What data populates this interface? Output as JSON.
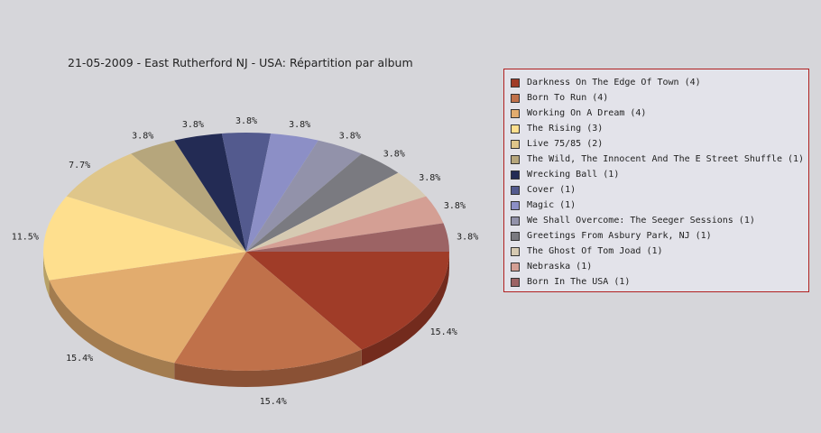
{
  "chart_data": {
    "type": "pie",
    "title": "21-05-2009 - East Rutherford NJ - USA:  Répartition par album",
    "legend_position": "right",
    "slices": [
      {
        "label": "Darkness On The Edge Of Town (4)",
        "value": 4,
        "pct_label": "15.4%",
        "color": "#a03c28"
      },
      {
        "label": "Born To Run (4)",
        "value": 4,
        "pct_label": "15.4%",
        "color": "#c0714a"
      },
      {
        "label": "Working On A Dream (4)",
        "value": 4,
        "pct_label": "15.4%",
        "color": "#e2ac6e"
      },
      {
        "label": "The Rising (3)",
        "value": 3,
        "pct_label": "11.5%",
        "color": "#fedf8e"
      },
      {
        "label": "Live 75/85 (2)",
        "value": 2,
        "pct_label": "7.7%",
        "color": "#dfc68a"
      },
      {
        "label": "The Wild, The Innocent And The E Street Shuffle (1)",
        "value": 1,
        "pct_label": "3.8%",
        "color": "#b6a67c"
      },
      {
        "label": "Wrecking Ball (1)",
        "value": 1,
        "pct_label": "3.8%",
        "color": "#232b54"
      },
      {
        "label": "Cover (1)",
        "value": 1,
        "pct_label": "3.8%",
        "color": "#535a8e"
      },
      {
        "label": "Magic (1)",
        "value": 1,
        "pct_label": "3.8%",
        "color": "#8c8fc6"
      },
      {
        "label": "We Shall Overcome: The Seeger Sessions (1)",
        "value": 1,
        "pct_label": "3.8%",
        "color": "#9292aa"
      },
      {
        "label": "Greetings From Asbury Park, NJ (1)",
        "value": 1,
        "pct_label": "3.8%",
        "color": "#7a7a80"
      },
      {
        "label": "The Ghost Of Tom Joad (1)",
        "value": 1,
        "pct_label": "3.8%",
        "color": "#d6cab2"
      },
      {
        "label": "Nebraska (1)",
        "value": 1,
        "pct_label": "3.8%",
        "color": "#d49f94"
      },
      {
        "label": "Born In The USA (1)",
        "value": 1,
        "pct_label": "3.8%",
        "color": "#9c6364"
      }
    ]
  }
}
